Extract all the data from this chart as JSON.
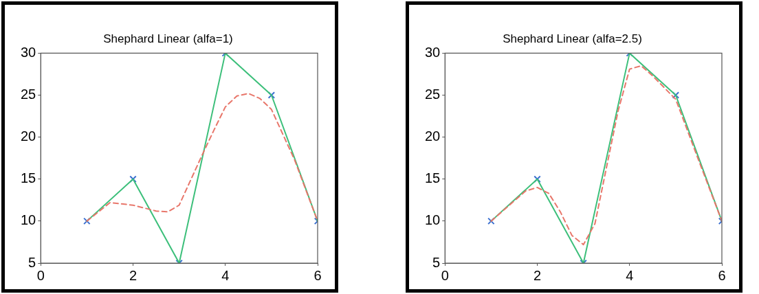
{
  "chart_data": [
    {
      "type": "line",
      "title": "Shephard Linear (alfa=1)",
      "xlim": [
        0,
        6
      ],
      "xticks": [
        0,
        2,
        4,
        6
      ],
      "ylim": [
        5,
        30
      ],
      "yticks": [
        5,
        10,
        15,
        20,
        25,
        30
      ],
      "grid": false,
      "legend": false,
      "series": [
        {
          "color": "#e8766a",
          "line_style": "dashed",
          "marker": "none",
          "x": [
            1,
            1.5,
            2,
            2.5,
            2.75,
            3,
            3.25,
            3.5,
            3.75,
            4,
            4.25,
            4.5,
            4.75,
            5,
            5.5,
            6
          ],
          "values": [
            10,
            12.2,
            11.9,
            11.2,
            11.1,
            11.9,
            14.9,
            17.9,
            20.8,
            23.6,
            24.9,
            25.2,
            24.6,
            23.3,
            17.3,
            10
          ]
        },
        {
          "type": "line",
          "color": "#3cbf7a",
          "line_style": "solid",
          "marker": "none",
          "x": [
            1,
            2,
            3,
            4,
            5,
            6
          ],
          "values": [
            10,
            15,
            5,
            30,
            25,
            10
          ]
        },
        {
          "type": "scatter",
          "color": "#3a6fd0",
          "marker": "cross",
          "x": [
            1,
            2,
            3,
            4,
            5,
            6
          ],
          "values": [
            10,
            15,
            5,
            30,
            25,
            10
          ]
        }
      ]
    },
    {
      "type": "line",
      "title": "Shephard Linear (alfa=2.5)",
      "xlim": [
        0,
        6
      ],
      "xticks": [
        0,
        2,
        4,
        6
      ],
      "ylim": [
        5,
        30
      ],
      "yticks": [
        5,
        10,
        15,
        20,
        25,
        30
      ],
      "grid": false,
      "legend": false,
      "series": [
        {
          "color": "#e8766a",
          "line_style": "dashed",
          "marker": "none",
          "x": [
            1,
            1.5,
            1.75,
            2,
            2.25,
            2.5,
            2.75,
            3,
            3.25,
            3.5,
            3.75,
            4,
            4.25,
            4.5,
            5,
            5.5,
            6
          ],
          "values": [
            10,
            12.4,
            13.6,
            14,
            13.3,
            11.1,
            8.3,
            7.2,
            9.7,
            16.4,
            23.1,
            28.1,
            28.5,
            27.3,
            24.5,
            17.2,
            10
          ]
        },
        {
          "type": "line",
          "color": "#3cbf7a",
          "line_style": "solid",
          "marker": "none",
          "x": [
            1,
            2,
            3,
            4,
            5,
            6
          ],
          "values": [
            10,
            15,
            5,
            30,
            25,
            10
          ]
        },
        {
          "type": "scatter",
          "color": "#3a6fd0",
          "marker": "cross",
          "x": [
            1,
            2,
            3,
            4,
            5,
            6
          ],
          "values": [
            10,
            15,
            5,
            30,
            25,
            10
          ]
        }
      ]
    }
  ]
}
